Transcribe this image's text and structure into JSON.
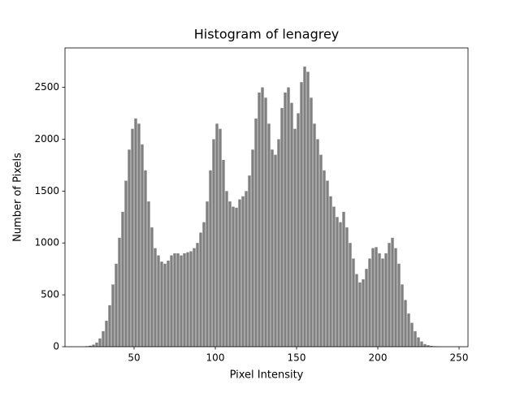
{
  "chart_data": {
    "type": "histogram",
    "title": "Histogram of lenagrey",
    "xlabel": "Pixel Intensity",
    "ylabel": "Number of Pixels",
    "bins": [
      20,
      22,
      24,
      26,
      28,
      30,
      32,
      34,
      36,
      38,
      40,
      42,
      44,
      46,
      48,
      50,
      52,
      54,
      56,
      58,
      60,
      62,
      64,
      66,
      68,
      70,
      72,
      74,
      76,
      78,
      80,
      82,
      84,
      86,
      88,
      90,
      92,
      94,
      96,
      98,
      100,
      102,
      104,
      106,
      108,
      110,
      112,
      114,
      116,
      118,
      120,
      122,
      124,
      126,
      128,
      130,
      132,
      134,
      136,
      138,
      140,
      142,
      144,
      146,
      148,
      150,
      152,
      154,
      156,
      158,
      160,
      162,
      164,
      166,
      168,
      170,
      172,
      174,
      176,
      178,
      180,
      182,
      184,
      186,
      188,
      190,
      192,
      194,
      196,
      198,
      200,
      202,
      204,
      206,
      208,
      210,
      212,
      214,
      216,
      218,
      220,
      222,
      224,
      226,
      228,
      230,
      232,
      234,
      236,
      238,
      240
    ],
    "counts": [
      5,
      10,
      20,
      40,
      80,
      150,
      250,
      400,
      600,
      800,
      1050,
      1300,
      1600,
      1900,
      2100,
      2200,
      2150,
      1950,
      1700,
      1400,
      1150,
      950,
      880,
      820,
      800,
      830,
      880,
      900,
      900,
      880,
      900,
      910,
      920,
      950,
      1000,
      1100,
      1200,
      1400,
      1700,
      2000,
      2150,
      2100,
      1800,
      1500,
      1400,
      1350,
      1340,
      1420,
      1450,
      1500,
      1650,
      1900,
      2200,
      2450,
      2500,
      2400,
      2150,
      1900,
      1850,
      2000,
      2300,
      2450,
      2500,
      2350,
      2100,
      2250,
      2550,
      2700,
      2650,
      2400,
      2150,
      2000,
      1850,
      1700,
      1600,
      1450,
      1350,
      1250,
      1200,
      1300,
      1150,
      1000,
      850,
      700,
      620,
      650,
      750,
      850,
      950,
      960,
      900,
      850,
      900,
      1000,
      1050,
      950,
      800,
      600,
      450,
      320,
      230,
      150,
      90,
      50,
      25,
      15,
      8,
      5,
      3,
      1
    ],
    "color": "#808080",
    "xlim": [
      7.5,
      255.5
    ],
    "ylim": [
      0,
      2880
    ],
    "xticks": [
      50,
      100,
      150,
      200,
      250
    ],
    "yticks": [
      0,
      500,
      1000,
      1500,
      2000,
      2500
    ]
  }
}
